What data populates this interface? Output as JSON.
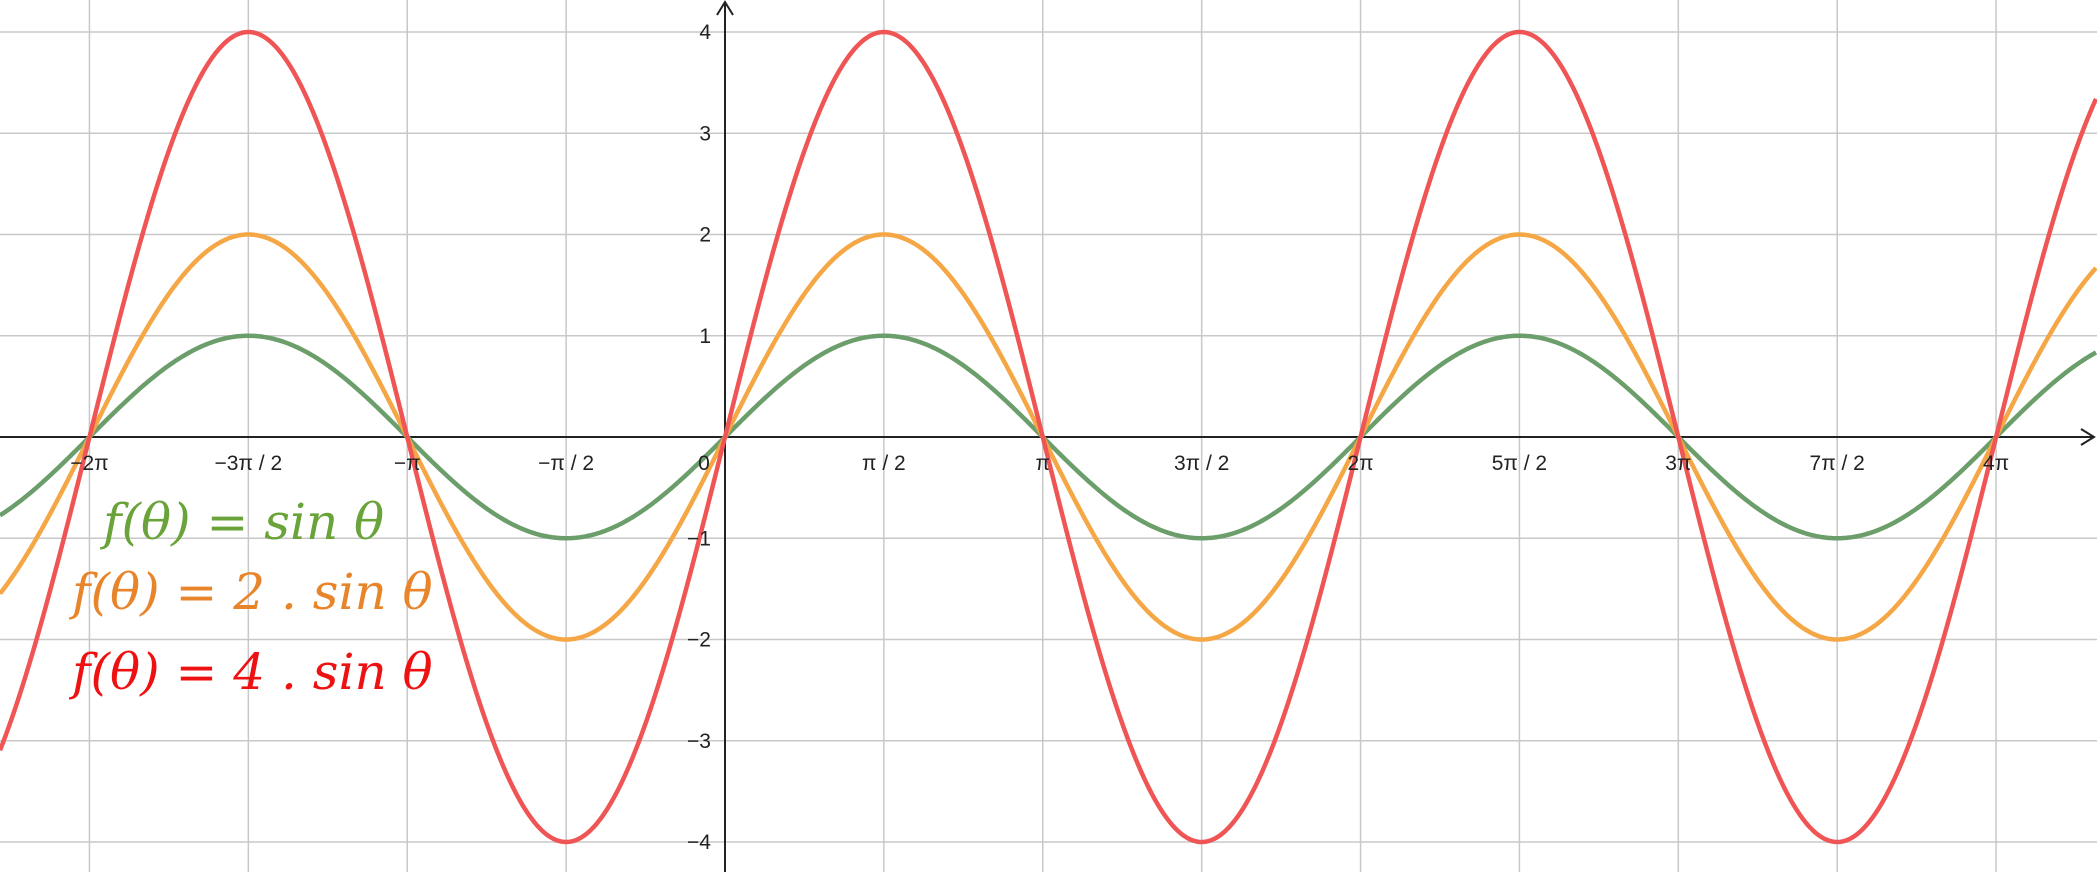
{
  "chart_data": {
    "type": "line",
    "title": "",
    "xlabel": "",
    "ylabel": "",
    "xlim": [
      -6.93,
      16.5
    ],
    "ylim": [
      -4.3,
      4.3
    ],
    "grid": true,
    "x_ticks": [
      {
        "value": -6.283185,
        "label": "−2π"
      },
      {
        "value": -4.712389,
        "label": "−3π / 2"
      },
      {
        "value": -3.141593,
        "label": "−π"
      },
      {
        "value": -1.570796,
        "label": "−π / 2"
      },
      {
        "value": 0,
        "label": "0"
      },
      {
        "value": 1.570796,
        "label": "π / 2"
      },
      {
        "value": 3.141593,
        "label": "π"
      },
      {
        "value": 4.712389,
        "label": "3π / 2"
      },
      {
        "value": 6.283185,
        "label": "2π"
      },
      {
        "value": 7.853982,
        "label": "5π / 2"
      },
      {
        "value": 9.424778,
        "label": "3π"
      },
      {
        "value": 10.995574,
        "label": "7π / 2"
      },
      {
        "value": 12.566371,
        "label": "4π"
      }
    ],
    "y_ticks": [
      {
        "value": 4,
        "label": "4"
      },
      {
        "value": 3,
        "label": "3"
      },
      {
        "value": 2,
        "label": "2"
      },
      {
        "value": 1,
        "label": "1"
      },
      {
        "value": -1,
        "label": "−1"
      },
      {
        "value": -2,
        "label": "−2"
      },
      {
        "value": -3,
        "label": "−3"
      },
      {
        "value": -4,
        "label": "−4"
      }
    ],
    "series": [
      {
        "name": "f(θ) = sin θ",
        "amplitude": 1,
        "color": "#6b9e6b"
      },
      {
        "name": "f(θ) = 2 . sin θ",
        "amplitude": 2,
        "color": "#f5a645"
      },
      {
        "name": "f(θ) = 4 . sin θ",
        "amplitude": 4,
        "color": "#f05555"
      }
    ]
  },
  "legend": [
    {
      "text": "f(θ) = sin θ",
      "color": "#6aa33a"
    },
    {
      "text": "f(θ) = 2 . sin θ",
      "color": "#e8852b"
    },
    {
      "text": "f(θ) = 4 . sin θ",
      "color": "#ee1111"
    }
  ]
}
